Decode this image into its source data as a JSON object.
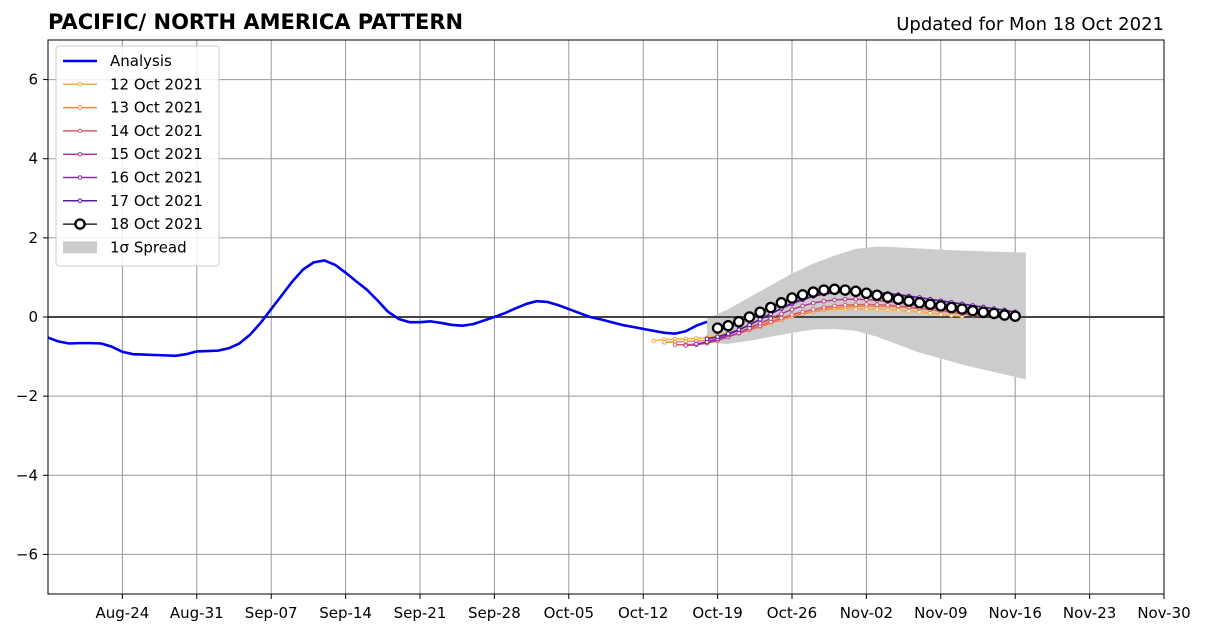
{
  "chart_data": {
    "type": "line",
    "title": "PACIFIC/ NORTH AMERICA PATTERN",
    "subtitle": "Updated for Mon 18 Oct 2021",
    "xlabel": "",
    "ylabel": "",
    "x_domain": [
      "2021-08-17",
      "2021-11-30"
    ],
    "ylim": [
      -7,
      7
    ],
    "x_ticks": [
      "2021-08-24",
      "2021-08-31",
      "2021-09-07",
      "2021-09-14",
      "2021-09-21",
      "2021-09-28",
      "2021-10-05",
      "2021-10-12",
      "2021-10-19",
      "2021-10-26",
      "2021-11-02",
      "2021-11-09",
      "2021-11-16",
      "2021-11-23",
      "2021-11-30"
    ],
    "x_tick_labels": [
      "Aug-24",
      "Aug-31",
      "Sep-07",
      "Sep-14",
      "Sep-21",
      "Sep-28",
      "Oct-05",
      "Oct-12",
      "Oct-19",
      "Oct-26",
      "Nov-02",
      "Nov-09",
      "Nov-16",
      "Nov-23",
      "Nov-30"
    ],
    "y_ticks": [
      -6,
      -4,
      -2,
      0,
      2,
      4,
      6
    ],
    "y_tick_labels": [
      "−6",
      "−4",
      "−2",
      "0",
      "2",
      "4",
      "6"
    ],
    "grid": true,
    "legend_position": "top-left",
    "colors": {
      "analysis": "#0000ee",
      "spread": "#cccccc",
      "grid": "#999999",
      "zero_line": "#444444"
    },
    "analysis": {
      "name": "Analysis",
      "start": "2021-08-17",
      "values": [
        -0.52,
        -0.62,
        -0.67,
        -0.66,
        -0.66,
        -0.67,
        -0.75,
        -0.88,
        -0.94,
        -0.95,
        -0.96,
        -0.97,
        -0.98,
        -0.94,
        -0.87,
        -0.86,
        -0.85,
        -0.79,
        -0.67,
        -0.45,
        -0.15,
        0.2,
        0.55,
        0.9,
        1.2,
        1.38,
        1.43,
        1.32,
        1.12,
        0.9,
        0.69,
        0.42,
        0.13,
        -0.05,
        -0.13,
        -0.13,
        -0.11,
        -0.15,
        -0.2,
        -0.22,
        -0.18,
        -0.09,
        0.0,
        0.1,
        0.22,
        0.33,
        0.4,
        0.38,
        0.3,
        0.2,
        0.1,
        0.0,
        -0.06,
        -0.13,
        -0.2,
        -0.25,
        -0.3,
        -0.35,
        -0.4,
        -0.42,
        -0.36,
        -0.22,
        -0.12
      ]
    },
    "spread": {
      "name": "1σ Spread",
      "start": "2021-10-18",
      "step_days": 2,
      "upper": [
        -0.05,
        0.2,
        0.5,
        0.8,
        1.1,
        1.35,
        1.55,
        1.72,
        1.78,
        1.76,
        1.73,
        1.7,
        1.68,
        1.66,
        1.64,
        1.63
      ],
      "lower": [
        -0.65,
        -0.68,
        -0.6,
        -0.5,
        -0.4,
        -0.32,
        -0.3,
        -0.35,
        -0.5,
        -0.7,
        -0.9,
        -1.05,
        -1.2,
        -1.33,
        -1.45,
        -1.58
      ]
    },
    "series": [
      {
        "name": "12 Oct 2021",
        "color": "#f5b13a",
        "start": "2021-10-13",
        "values": [
          -0.6,
          -0.57,
          -0.56,
          -0.55,
          -0.54,
          -0.52,
          -0.47,
          -0.4,
          -0.32,
          -0.24,
          -0.16,
          -0.08,
          -0.01,
          0.04,
          0.1,
          0.14,
          0.17,
          0.19,
          0.2,
          0.2,
          0.2,
          0.2,
          0.19,
          0.17,
          0.15,
          0.13,
          0.1,
          0.07,
          0.04,
          0.02
        ]
      },
      {
        "name": "13 Oct 2021",
        "color": "#f08a48",
        "start": "2021-10-14",
        "values": [
          -0.64,
          -0.63,
          -0.62,
          -0.61,
          -0.59,
          -0.55,
          -0.49,
          -0.42,
          -0.33,
          -0.25,
          -0.16,
          -0.07,
          0.01,
          0.08,
          0.14,
          0.19,
          0.23,
          0.25,
          0.27,
          0.27,
          0.27,
          0.26,
          0.25,
          0.23,
          0.21,
          0.18,
          0.15,
          0.12,
          0.08,
          0.05
        ]
      },
      {
        "name": "14 Oct 2021",
        "color": "#dd5c6c",
        "start": "2021-10-15",
        "values": [
          -0.7,
          -0.7,
          -0.68,
          -0.64,
          -0.58,
          -0.5,
          -0.41,
          -0.32,
          -0.22,
          -0.12,
          -0.03,
          0.06,
          0.13,
          0.19,
          0.24,
          0.28,
          0.3,
          0.31,
          0.32,
          0.31,
          0.3,
          0.28,
          0.25,
          0.22,
          0.19,
          0.15,
          0.12,
          0.08,
          0.05,
          0.02
        ]
      },
      {
        "name": "15 Oct 2021",
        "color": "#b83a8c",
        "start": "2021-10-16",
        "values": [
          -0.72,
          -0.7,
          -0.66,
          -0.59,
          -0.5,
          -0.4,
          -0.28,
          -0.16,
          -0.04,
          0.08,
          0.19,
          0.28,
          0.35,
          0.4,
          0.43,
          0.45,
          0.45,
          0.44,
          0.42,
          0.39,
          0.36,
          0.32,
          0.28,
          0.24,
          0.2,
          0.16,
          0.12,
          0.09,
          0.06,
          0.04
        ]
      },
      {
        "name": "16 Oct 2021",
        "color": "#8a2aa8",
        "start": "2021-10-17",
        "values": [
          -0.68,
          -0.63,
          -0.55,
          -0.45,
          -0.33,
          -0.2,
          -0.06,
          0.08,
          0.21,
          0.33,
          0.43,
          0.52,
          0.58,
          0.63,
          0.65,
          0.66,
          0.65,
          0.63,
          0.6,
          0.57,
          0.53,
          0.49,
          0.45,
          0.41,
          0.37,
          0.33,
          0.29,
          0.25,
          0.21,
          0.18
        ]
      },
      {
        "name": "17 Oct 2021",
        "color": "#5a1a9e",
        "start": "2021-10-18",
        "values": [
          -0.55,
          -0.5,
          -0.42,
          -0.32,
          -0.2,
          -0.06,
          0.08,
          0.22,
          0.35,
          0.45,
          0.53,
          0.58,
          0.61,
          0.63,
          0.63,
          0.62,
          0.6,
          0.58,
          0.55,
          0.52,
          0.49,
          0.45,
          0.41,
          0.37,
          0.33,
          0.29,
          0.25,
          0.21,
          0.17,
          0.13
        ]
      },
      {
        "name": "18 Oct 2021",
        "color": "#000000",
        "start": "2021-10-19",
        "values": [
          -0.28,
          -0.22,
          -0.12,
          0.0,
          0.12,
          0.24,
          0.36,
          0.48,
          0.56,
          0.63,
          0.68,
          0.7,
          0.68,
          0.65,
          0.6,
          0.55,
          0.5,
          0.45,
          0.4,
          0.36,
          0.32,
          0.28,
          0.24,
          0.2,
          0.16,
          0.12,
          0.09,
          0.05,
          0.02
        ]
      }
    ]
  }
}
